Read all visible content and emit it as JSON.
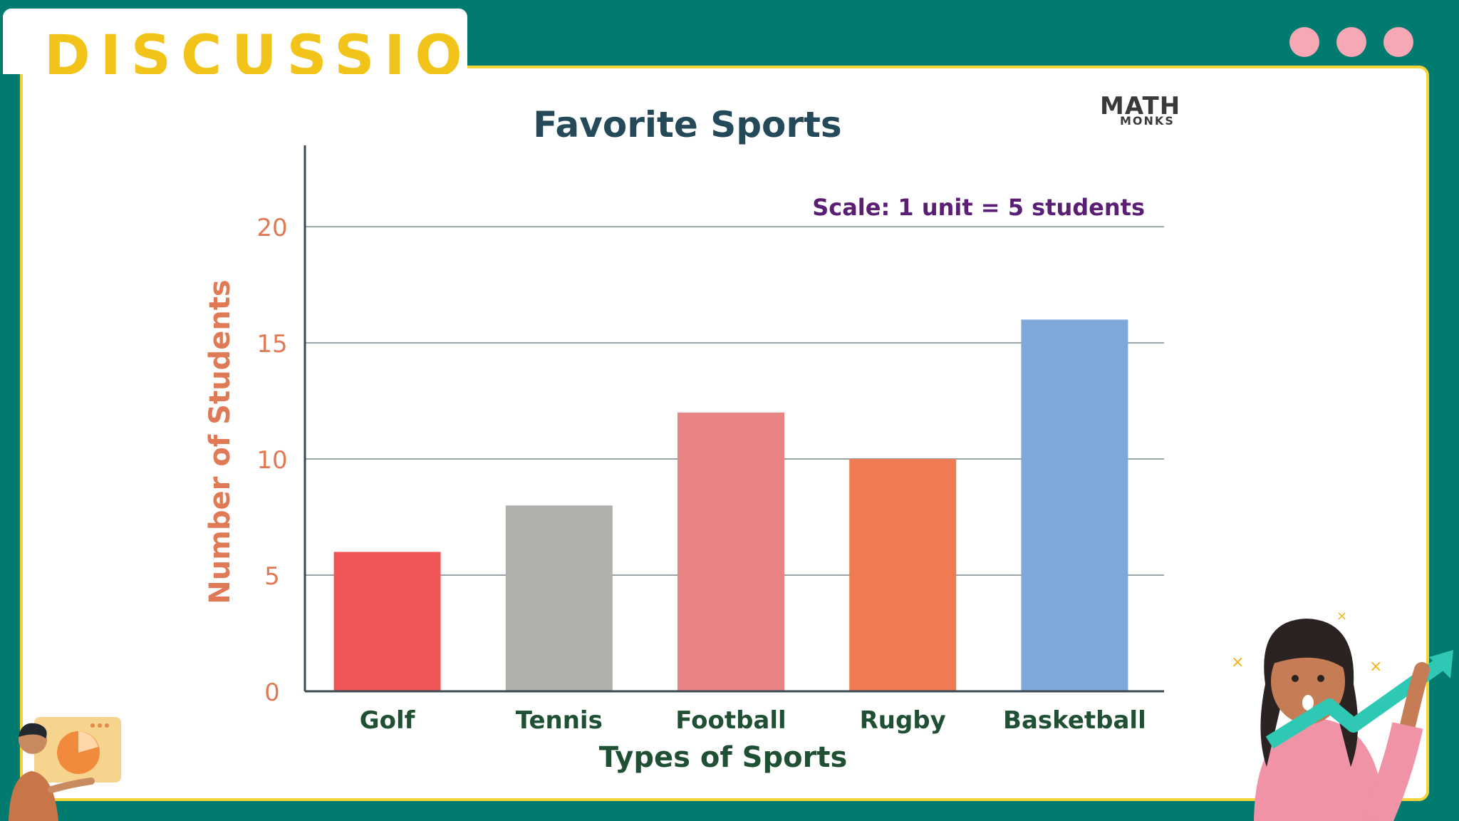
{
  "header": {
    "title": "DISCUSSION"
  },
  "logo": {
    "line1": "MATH",
    "line2": "MONKS"
  },
  "colors": {
    "background": "#017a70",
    "card_border": "#f3d43a",
    "title_yellow": "#f2c318",
    "dot_pink": "#f6a8b4"
  },
  "chart_data": {
    "type": "bar",
    "title": "Favorite Sports",
    "annotation": "Scale: 1 unit = 5 students",
    "xlabel": "Types of Sports",
    "ylabel": "Number of Students",
    "categories": [
      "Golf",
      "Tennis",
      "Football",
      "Rugby",
      "Basketball"
    ],
    "values": [
      6,
      8,
      12,
      10,
      16
    ],
    "bar_colors": [
      "#f05656",
      "#b0b0ad",
      "#e88484",
      "#ef7b52",
      "#7ea8da"
    ],
    "y_ticks": [
      0,
      5,
      10,
      15,
      20
    ],
    "ylim": [
      0,
      23.5
    ],
    "grid": true,
    "legend": "none"
  }
}
